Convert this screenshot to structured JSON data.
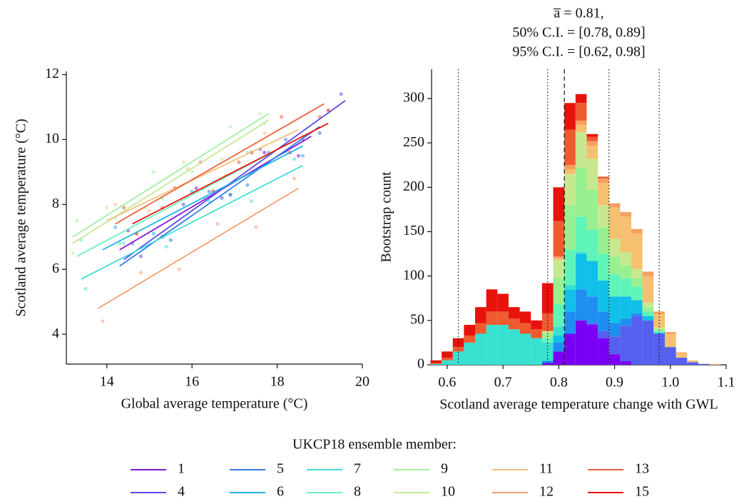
{
  "chart_data": [
    {
      "type": "scatter",
      "x_label": "Global average temperature (°C)",
      "y_label": "Scotland average temperature (°C)",
      "xlim": [
        13.05,
        20
      ],
      "ylim": [
        3.08,
        12.1
      ],
      "xticks": [
        14,
        16,
        18,
        20
      ],
      "yticks": [
        4,
        6,
        8,
        10,
        12
      ],
      "series": [
        {
          "name": "1",
          "color": "#8a14d9",
          "x": [
            14.5,
            15.3,
            16.1,
            16.9,
            17.7,
            18.5
          ],
          "values": [
            7.2,
            7.0,
            8.5,
            8.3,
            9.6,
            9.5
          ],
          "fit_x": [
            14.3,
            18.8
          ],
          "fit_y": [
            6.6,
            10.1
          ]
        },
        {
          "name": "4",
          "color": "#5b4de8",
          "x": [
            14.8,
            15.8,
            16.7,
            17.6,
            18.6,
            19.5
          ],
          "values": [
            6.4,
            8.0,
            8.2,
            9.7,
            10.0,
            11.4
          ],
          "fit_x": [
            14.4,
            19.6
          ],
          "fit_y": [
            6.3,
            11.2
          ]
        },
        {
          "name": "5",
          "color": "#2f7fe6",
          "x": [
            14.6,
            15.5,
            16.4,
            17.3,
            18.2,
            19.0
          ],
          "values": [
            6.8,
            6.9,
            8.4,
            8.6,
            10.0,
            10.2
          ],
          "fit_x": [
            14.3,
            19.0
          ],
          "fit_y": [
            6.1,
            10.4
          ]
        },
        {
          "name": "6",
          "color": "#18b4e0",
          "x": [
            14.2,
            15.1,
            16.0,
            16.9,
            17.8,
            18.6
          ],
          "values": [
            7.3,
            7.1,
            8.4,
            8.3,
            9.6,
            9.5
          ],
          "fit_x": [
            13.9,
            18.6
          ],
          "fit_y": [
            6.6,
            9.8
          ]
        },
        {
          "name": "7",
          "color": "#3fe0d8",
          "x": [
            13.5,
            14.4,
            15.4,
            16.4,
            17.4,
            18.4
          ],
          "values": [
            5.4,
            6.8,
            6.7,
            8.1,
            8.1,
            9.4
          ],
          "fit_x": [
            13.4,
            18.6
          ],
          "fit_y": [
            5.7,
            9.2
          ]
        },
        {
          "name": "8",
          "color": "#6af5c0",
          "x": [
            13.4,
            14.3,
            15.3,
            16.3,
            17.3,
            18.2
          ],
          "values": [
            6.9,
            6.8,
            8.2,
            8.2,
            9.6,
            9.6
          ],
          "fit_x": [
            13.3,
            18.3
          ],
          "fit_y": [
            6.4,
            9.9
          ]
        },
        {
          "name": "9",
          "color": "#9ef0a0",
          "x": [
            13.3,
            14.2,
            15.1,
            16.0,
            16.9,
            17.7
          ],
          "values": [
            7.5,
            7.6,
            9.0,
            9.0,
            10.4,
            10.5
          ],
          "fit_x": [
            13.2,
            17.8
          ],
          "fit_y": [
            7.0,
            10.8
          ]
        },
        {
          "name": "10",
          "color": "#c8e898",
          "x": [
            13.2,
            14.0,
            14.9,
            15.8,
            16.7,
            17.6
          ],
          "values": [
            6.5,
            7.9,
            7.9,
            9.3,
            9.4,
            10.8
          ],
          "fit_x": [
            13.2,
            17.8
          ],
          "fit_y": [
            6.8,
            10.6
          ]
        },
        {
          "name": "11",
          "color": "#f5c07a",
          "x": [
            14.2,
            15.0,
            15.9,
            16.8,
            17.7,
            18.6
          ],
          "values": [
            8.0,
            7.8,
            9.1,
            8.9,
            10.2,
            10.1
          ],
          "fit_x": [
            14.0,
            18.5
          ],
          "fit_y": [
            7.5,
            10.3
          ]
        },
        {
          "name": "12",
          "color": "#f5a070",
          "x": [
            13.9,
            14.8,
            15.7,
            16.6,
            17.5,
            18.4
          ],
          "values": [
            4.4,
            5.9,
            6.0,
            7.4,
            7.3,
            8.8
          ],
          "fit_x": [
            13.8,
            18.5
          ],
          "fit_y": [
            4.8,
            8.5
          ]
        },
        {
          "name": "13",
          "color": "#f0603a",
          "x": [
            14.4,
            15.3,
            16.2,
            17.1,
            18.1,
            19.0
          ],
          "values": [
            7.9,
            7.9,
            9.3,
            9.3,
            10.7,
            10.7
          ],
          "fit_x": [
            14.2,
            19.1
          ],
          "fit_y": [
            7.4,
            11.1
          ]
        },
        {
          "name": "15",
          "color": "#e8120c",
          "x": [
            14.7,
            15.6,
            16.5,
            17.4,
            18.3,
            19.2
          ],
          "values": [
            7.1,
            8.5,
            8.4,
            9.6,
            9.6,
            10.9
          ],
          "fit_x": [
            14.6,
            19.2
          ],
          "fit_y": [
            7.4,
            10.5
          ]
        }
      ]
    },
    {
      "type": "histogram",
      "title": [
        "a̅ = 0.81,",
        "50% C.I. = [0.78, 0.89]",
        "95% C.I. = [0.62, 0.98]"
      ],
      "x_label": "Scotland average temperature change with GWL",
      "y_label": "Bootstrap count",
      "xlim": [
        0.572,
        1.1
      ],
      "ylim": [
        0,
        333
      ],
      "xticks": [
        0.6,
        0.7,
        0.8,
        0.9,
        {
          "value": 1,
          "label": "1.0"
        },
        1.1
      ],
      "yticks": [
        0,
        50,
        100,
        150,
        200,
        250,
        300
      ],
      "mean": 0.81,
      "ci50": [
        0.78,
        0.89
      ],
      "ci95": [
        0.62,
        0.98
      ],
      "bins": [
        0.57,
        0.59,
        0.61,
        0.63,
        0.65,
        0.67,
        0.69,
        0.71,
        0.73,
        0.75,
        0.77,
        0.79,
        0.81,
        0.83,
        0.85,
        0.87,
        0.89,
        0.91,
        0.93,
        0.95,
        0.97,
        0.99,
        1.01,
        1.03,
        1.05,
        1.07,
        1.09
      ],
      "series": [
        {
          "color": "#7a00f5",
          "values": [
            0,
            0,
            0,
            0,
            0,
            0,
            0,
            0,
            0,
            0,
            2,
            15,
            35,
            50,
            45,
            30,
            12,
            4,
            0,
            0,
            0,
            0,
            0,
            0,
            0,
            0
          ]
        },
        {
          "color": "#5560f0",
          "values": [
            0,
            0,
            0,
            0,
            0,
            0,
            0,
            0,
            0,
            0,
            0,
            0,
            0,
            0,
            2,
            8,
            20,
            40,
            55,
            50,
            35,
            20,
            8,
            3,
            1,
            0
          ]
        },
        {
          "color": "#1f8ef0",
          "values": [
            0,
            0,
            0,
            0,
            0,
            0,
            0,
            0,
            0,
            0,
            2,
            10,
            25,
            35,
            30,
            22,
            15,
            8,
            3,
            0,
            0,
            0,
            0,
            0,
            0,
            0
          ]
        },
        {
          "color": "#10c0e8",
          "values": [
            0,
            0,
            0,
            0,
            0,
            0,
            0,
            0,
            0,
            0,
            1,
            8,
            25,
            40,
            40,
            35,
            30,
            25,
            15,
            5,
            1,
            0,
            0,
            0,
            0,
            0
          ]
        },
        {
          "color": "#38e0d0",
          "values": [
            1,
            5,
            15,
            25,
            35,
            45,
            45,
            40,
            35,
            30,
            20,
            10,
            5,
            2,
            0,
            0,
            0,
            0,
            0,
            0,
            0,
            0,
            0,
            0,
            0,
            0
          ]
        },
        {
          "color": "#60f5b8",
          "values": [
            0,
            0,
            0,
            0,
            0,
            0,
            0,
            0,
            0,
            0,
            5,
            25,
            40,
            40,
            35,
            30,
            25,
            20,
            15,
            5,
            2,
            0,
            0,
            0,
            0,
            0
          ]
        },
        {
          "color": "#98f090",
          "values": [
            0,
            0,
            0,
            0,
            0,
            0,
            0,
            0,
            0,
            0,
            5,
            30,
            50,
            55,
            45,
            30,
            20,
            15,
            10,
            5,
            2,
            0,
            0,
            0,
            0,
            0
          ]
        },
        {
          "color": "#c8e890",
          "values": [
            0,
            0,
            0,
            0,
            0,
            0,
            0,
            0,
            0,
            0,
            3,
            20,
            35,
            40,
            35,
            25,
            20,
            15,
            10,
            5,
            2,
            0,
            0,
            0,
            0,
            0
          ]
        },
        {
          "color": "#f5c070",
          "values": [
            0,
            0,
            0,
            0,
            0,
            0,
            0,
            0,
            0,
            0,
            0,
            2,
            5,
            8,
            15,
            25,
            35,
            40,
            40,
            30,
            15,
            15,
            5,
            2,
            0,
            1
          ]
        },
        {
          "color": "#f5a060",
          "values": [
            0,
            0,
            0,
            0,
            0,
            0,
            0,
            0,
            0,
            0,
            0,
            2,
            5,
            5,
            5,
            5,
            5,
            5,
            5,
            5,
            3,
            2,
            1,
            0,
            0,
            0
          ]
        },
        {
          "color": "#f05a30",
          "values": [
            1,
            3,
            5,
            8,
            12,
            15,
            15,
            12,
            12,
            10,
            20,
            40,
            40,
            20,
            5,
            2,
            0,
            0,
            0,
            0,
            0,
            0,
            0,
            0,
            0,
            0
          ]
        },
        {
          "color": "#e8120c",
          "values": [
            3,
            7,
            10,
            12,
            18,
            25,
            20,
            13,
            13,
            10,
            34,
            38,
            30,
            10,
            3,
            0,
            0,
            0,
            0,
            0,
            0,
            0,
            0,
            0,
            0,
            0
          ]
        }
      ]
    }
  ],
  "legend": {
    "title": "UKCP18 ensemble member:"
  }
}
